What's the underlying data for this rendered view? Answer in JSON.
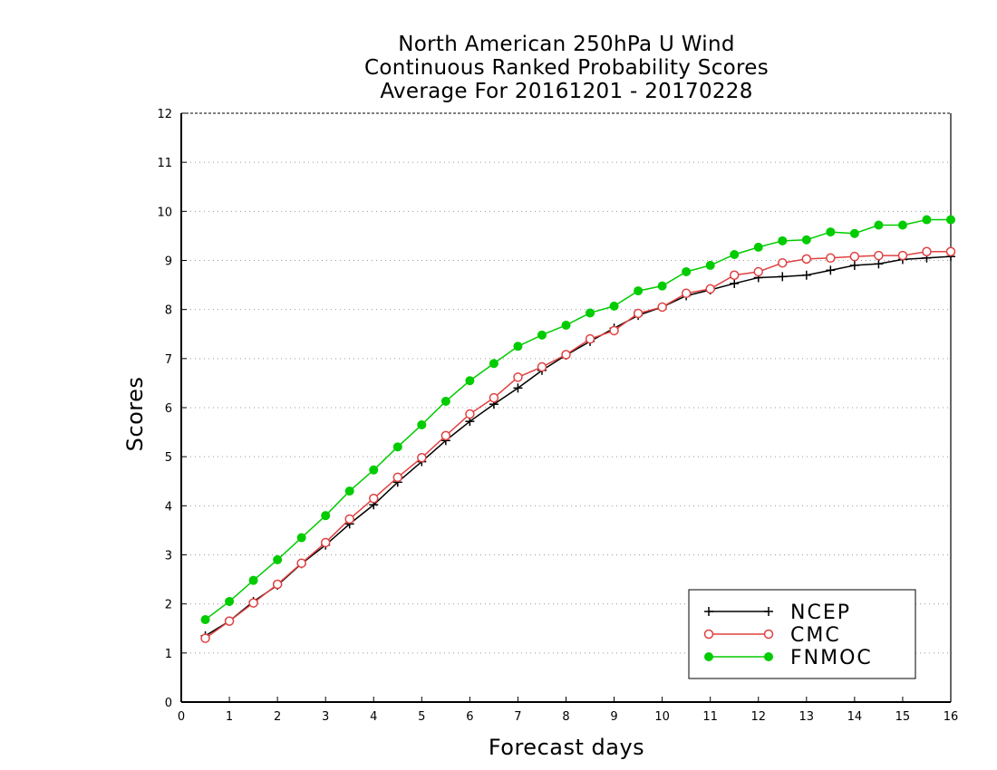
{
  "chart_data": {
    "type": "line",
    "title_lines": [
      "North American 250hPa U Wind",
      "Continuous Ranked Probability Scores",
      "Average For 20161201 - 20170228"
    ],
    "xlabel": "Forecast days",
    "ylabel": "Scores",
    "xlim": [
      0,
      16
    ],
    "ylim": [
      0,
      12
    ],
    "x_ticks": [
      "0",
      "1",
      "2",
      "3",
      "4",
      "5",
      "6",
      "7",
      "8",
      "9",
      "10",
      "11",
      "12",
      "13",
      "14",
      "15",
      "16"
    ],
    "y_ticks": [
      "0",
      "1",
      "2",
      "3",
      "4",
      "5",
      "6",
      "7",
      "8",
      "9",
      "10",
      "11",
      "12"
    ],
    "grid": "horizontal-dotted",
    "legend_position": "bottom-right",
    "x": [
      0.5,
      1,
      1.5,
      2,
      2.5,
      3,
      3.5,
      4,
      4.5,
      5,
      5.5,
      6,
      6.5,
      7,
      7.5,
      8,
      8.5,
      9,
      9.5,
      10,
      10.5,
      11,
      11.5,
      12,
      12.5,
      13,
      13.5,
      14,
      14.5,
      15,
      15.5,
      16
    ],
    "series": [
      {
        "name": "NCEP",
        "color": "#000000",
        "marker": "plus",
        "values": [
          1.35,
          1.65,
          2.05,
          2.38,
          2.82,
          3.2,
          3.63,
          4.02,
          4.48,
          4.9,
          5.33,
          5.72,
          6.07,
          6.4,
          6.76,
          7.07,
          7.35,
          7.62,
          7.88,
          8.05,
          8.28,
          8.4,
          8.53,
          8.65,
          8.67,
          8.7,
          8.8,
          8.9,
          8.93,
          9.02,
          9.05,
          9.08
        ]
      },
      {
        "name": "CMC",
        "color": "#e04040",
        "marker": "open-circle",
        "values": [
          1.3,
          1.65,
          2.02,
          2.4,
          2.83,
          3.25,
          3.73,
          4.15,
          4.58,
          4.98,
          5.43,
          5.87,
          6.2,
          6.62,
          6.83,
          7.08,
          7.4,
          7.57,
          7.92,
          8.05,
          8.33,
          8.42,
          8.7,
          8.77,
          8.95,
          9.03,
          9.05,
          9.08,
          9.1,
          9.1,
          9.18,
          9.18
        ]
      },
      {
        "name": "FNMOC",
        "color": "#00cc00",
        "marker": "filled-circle",
        "values": [
          1.68,
          2.05,
          2.48,
          2.9,
          3.35,
          3.8,
          4.3,
          4.73,
          5.2,
          5.65,
          6.13,
          6.55,
          6.9,
          7.25,
          7.48,
          7.68,
          7.93,
          8.07,
          8.38,
          8.48,
          8.77,
          8.9,
          9.12,
          9.27,
          9.4,
          9.42,
          9.58,
          9.55,
          9.72,
          9.72,
          9.83,
          9.83
        ]
      }
    ]
  }
}
